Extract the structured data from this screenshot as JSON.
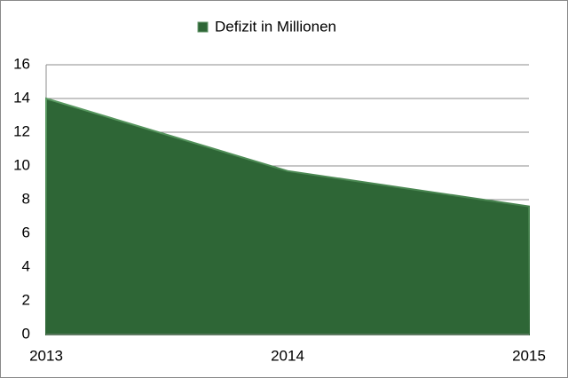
{
  "chart_data": {
    "type": "area",
    "categories": [
      "2013",
      "2014",
      "2015"
    ],
    "series": [
      {
        "name": "Defizit in Millionen",
        "color": "#2e6636",
        "values": [
          14,
          9.7,
          7.6
        ]
      }
    ],
    "ylim": [
      0,
      16
    ],
    "yticks": [
      0,
      2,
      4,
      6,
      8,
      10,
      12,
      14,
      16
    ],
    "grid": true,
    "legend": "top"
  }
}
